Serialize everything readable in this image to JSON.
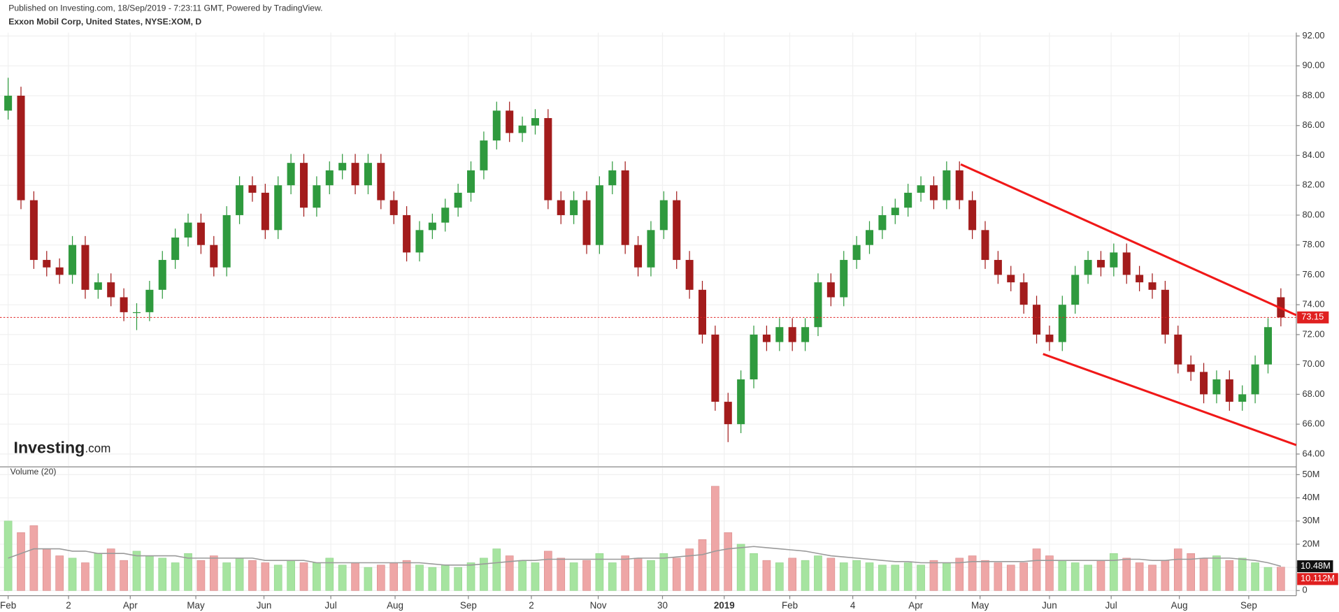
{
  "chart_data": {
    "type": "candlestick",
    "published": "Published on Investing.com, 18/Sep/2019 - 7:23:11 GMT, Powered by TradingView.",
    "title": "Exxon Mobil Corp, United States, NYSE:XOM, D",
    "logo": [
      "Investing",
      ".com"
    ],
    "volume_title": "Volume (20)",
    "up_color": "#2f9a3e",
    "down_color": "#a31c1c",
    "volume_up_color": "#a6e4a0",
    "volume_down_color": "#eea6a6",
    "ma_color": "#9a9a9a",
    "trendline_color": "#f01818",
    "grid": true,
    "xlim": [
      -0.3,
      100.2
    ],
    "xticks": [
      {
        "value": 0,
        "label": "Feb"
      },
      {
        "value": 4.7,
        "label": "2"
      },
      {
        "value": 9.5,
        "label": "Apr"
      },
      {
        "value": 14.6,
        "label": "May"
      },
      {
        "value": 19.9,
        "label": "Jun"
      },
      {
        "value": 25.1,
        "label": "Jul"
      },
      {
        "value": 30.1,
        "label": "Aug"
      },
      {
        "value": 35.8,
        "label": "Sep"
      },
      {
        "value": 40.7,
        "label": "2"
      },
      {
        "value": 45.9,
        "label": "Nov"
      },
      {
        "value": 50.9,
        "label": "30"
      },
      {
        "value": 55.7,
        "label": "2019"
      },
      {
        "value": 60.8,
        "label": "Feb"
      },
      {
        "value": 65.7,
        "label": "4"
      },
      {
        "value": 70.6,
        "label": "Apr"
      },
      {
        "value": 75.6,
        "label": "May"
      },
      {
        "value": 81.0,
        "label": "Jun"
      },
      {
        "value": 85.8,
        "label": "Jul"
      },
      {
        "value": 91.1,
        "label": "Aug"
      },
      {
        "value": 96.5,
        "label": "Sep"
      }
    ],
    "ylim": [
      63.2,
      92.23
    ],
    "yticks": [
      {
        "value": 64,
        "label": "64.00"
      },
      {
        "value": 66,
        "label": "66.00"
      },
      {
        "value": 68,
        "label": "68.00"
      },
      {
        "value": 70,
        "label": "70.00"
      },
      {
        "value": 72,
        "label": "72.00"
      },
      {
        "value": 74,
        "label": "74.00"
      },
      {
        "value": 76,
        "label": "76.00"
      },
      {
        "value": 78,
        "label": "78.00"
      },
      {
        "value": 80,
        "label": "80.00"
      },
      {
        "value": 82,
        "label": "82.00"
      },
      {
        "value": 84,
        "label": "84.00"
      },
      {
        "value": 86,
        "label": "86.00"
      },
      {
        "value": 88,
        "label": "88.00"
      },
      {
        "value": 90,
        "label": "90.00"
      },
      {
        "value": 92,
        "label": "92.00"
      }
    ],
    "y2lim": [
      -1.1,
      53
    ],
    "y2ticks": [
      0,
      {
        "value": 10,
        "label": "10M"
      },
      {
        "value": 20,
        "label": "20M"
      },
      {
        "value": 30,
        "label": "30M"
      },
      {
        "value": 40,
        "label": "40M"
      },
      {
        "value": 50,
        "label": "50M"
      }
    ],
    "open": [
      87,
      88,
      81,
      77,
      76.5,
      76,
      78,
      75,
      75.5,
      74.5,
      73.5,
      73.5,
      75,
      77,
      78.5,
      79.5,
      78,
      76.5,
      80,
      82,
      81.5,
      79,
      82,
      83.5,
      80.5,
      82,
      83,
      83.5,
      82,
      83.5,
      81,
      80,
      77.5,
      79,
      79.5,
      80.5,
      81.5,
      83,
      85,
      87,
      85.5,
      86,
      86.5,
      81,
      80,
      81,
      78,
      82,
      83,
      78,
      76.5,
      79,
      81,
      77,
      75,
      72,
      67.5,
      66,
      69,
      72,
      71.5,
      72.5,
      71.5,
      72.5,
      75.5,
      74.5,
      77,
      78,
      79,
      80,
      80.5,
      81.5,
      82,
      81,
      83,
      81,
      79,
      77,
      76,
      75.5,
      74,
      72,
      71.5,
      74,
      76,
      77,
      76.5,
      77.5,
      76,
      75.5,
      75,
      72,
      70,
      69.5,
      68,
      69,
      67.5,
      68,
      70,
      74.5
    ],
    "high": [
      89.2,
      88.6,
      81.6,
      77.6,
      77.1,
      78.6,
      78.6,
      76.1,
      76.1,
      75.1,
      74.1,
      75.6,
      77.6,
      79.1,
      80.1,
      80.1,
      78.6,
      80.6,
      82.6,
      82.6,
      82.1,
      82.6,
      84.1,
      84.1,
      82.6,
      83.6,
      84.1,
      84.1,
      84.1,
      84.1,
      81.6,
      80.6,
      79.6,
      80.1,
      81.1,
      82.1,
      83.6,
      85.6,
      87.6,
      87.6,
      86.6,
      87.1,
      87.1,
      81.6,
      81.6,
      81.6,
      82.6,
      83.6,
      83.6,
      78.6,
      79.6,
      81.6,
      81.6,
      77.6,
      75.6,
      72.6,
      68.1,
      69.6,
      72.6,
      72.6,
      73.1,
      73.1,
      73.1,
      76.1,
      76.1,
      77.6,
      78.6,
      79.6,
      80.6,
      81.1,
      82.1,
      82.6,
      82.6,
      83.6,
      83.6,
      81.6,
      79.6,
      77.6,
      76.6,
      76.1,
      74.6,
      72.6,
      74.6,
      76.6,
      77.6,
      77.6,
      78.1,
      78.1,
      76.6,
      76.1,
      75.6,
      72.6,
      70.6,
      70.1,
      69.6,
      69.6,
      68.6,
      70.6,
      73.1,
      75.1
    ],
    "low": [
      86.4,
      80.4,
      76.4,
      75.9,
      75.4,
      75.4,
      74.4,
      74.4,
      73.9,
      72.9,
      72.3,
      72.9,
      74.4,
      76.4,
      77.9,
      77.4,
      75.9,
      75.9,
      79.4,
      80.9,
      78.4,
      78.4,
      81.4,
      79.9,
      79.9,
      81.4,
      82.4,
      81.4,
      81.4,
      80.4,
      79.4,
      76.9,
      76.9,
      78.4,
      78.9,
      79.9,
      80.9,
      82.4,
      84.4,
      84.9,
      84.9,
      85.4,
      80.4,
      79.4,
      79.4,
      77.4,
      77.4,
      81.4,
      77.4,
      75.9,
      75.9,
      78.4,
      76.4,
      74.4,
      71.4,
      66.9,
      64.8,
      65.4,
      68.4,
      70.9,
      70.9,
      70.9,
      70.9,
      71.9,
      73.9,
      73.9,
      76.4,
      77.4,
      78.4,
      79.4,
      79.9,
      80.9,
      80.4,
      80.4,
      80.4,
      78.4,
      76.4,
      75.4,
      74.9,
      73.4,
      71.4,
      70.9,
      70.9,
      73.4,
      75.4,
      75.9,
      75.9,
      75.4,
      74.9,
      74.4,
      71.4,
      69.4,
      68.9,
      67.4,
      67.4,
      66.9,
      66.9,
      67.4,
      69.4,
      72.55
    ],
    "close": [
      88,
      81,
      77,
      76.5,
      76,
      78,
      75,
      75.5,
      74.5,
      73.5,
      73.5,
      75,
      77,
      78.5,
      79.5,
      78,
      76.5,
      80,
      82,
      81.5,
      79,
      82,
      83.5,
      80.5,
      82,
      83,
      83.5,
      82,
      83.5,
      81,
      80,
      77.5,
      79,
      79.5,
      80.5,
      81.5,
      83,
      85,
      87,
      85.5,
      86,
      86.5,
      81,
      80,
      81,
      78,
      82,
      83,
      78,
      76.5,
      79,
      81,
      77,
      75,
      72,
      67.5,
      66,
      69,
      72,
      71.5,
      72.5,
      71.5,
      72.5,
      75.5,
      74.5,
      77,
      78,
      79,
      80,
      80.5,
      81.5,
      82,
      81,
      83,
      81,
      79,
      77,
      76,
      75.5,
      74,
      72,
      71.5,
      74,
      76,
      77,
      76.5,
      77.5,
      76,
      75.5,
      75,
      72,
      70,
      69.5,
      68,
      69,
      67.5,
      68,
      70,
      72.5,
      73.15
    ],
    "volume": [
      30,
      25,
      28,
      18,
      15,
      14,
      12,
      16,
      18,
      13,
      17,
      15,
      14,
      12,
      16,
      13,
      15,
      12,
      14,
      13,
      12,
      11,
      13,
      12,
      12,
      14,
      11,
      12,
      10,
      11,
      12,
      13,
      11,
      10,
      11,
      10,
      12,
      14,
      18,
      15,
      13,
      12,
      17,
      14,
      12,
      13,
      16,
      12,
      15,
      14,
      13,
      16,
      14,
      18,
      22,
      45,
      25,
      20,
      16,
      13,
      12,
      14,
      13,
      15,
      14,
      12,
      13,
      12,
      11,
      11,
      12,
      11,
      13,
      12,
      14,
      15,
      13,
      12,
      11,
      12,
      18,
      15,
      13,
      12,
      11,
      13,
      16,
      14,
      12,
      11,
      13,
      18,
      16,
      14,
      15,
      13,
      14,
      12,
      10,
      10.112
    ],
    "volume_label": "10.112M",
    "volume_ma": [
      14,
      16,
      18,
      18,
      18,
      17,
      17,
      16,
      16,
      16,
      15,
      15,
      15,
      15,
      14,
      14,
      14,
      14,
      14,
      14,
      13,
      13,
      13,
      13,
      12,
      12,
      12,
      12,
      12,
      12,
      12,
      12,
      12,
      11.5,
      11,
      11,
      11,
      11.5,
      12,
      12.5,
      13,
      13,
      13.5,
      13.5,
      13.5,
      13.5,
      13.5,
      13.5,
      13.5,
      14,
      14,
      14,
      14.5,
      15,
      15.5,
      17,
      18,
      18.5,
      19,
      18.5,
      18,
      17.5,
      17,
      16,
      15,
      14.5,
      14,
      13.5,
      13,
      12.5,
      12.5,
      12,
      12,
      12,
      12,
      12.5,
      12.5,
      12.5,
      12.5,
      12.5,
      13,
      13,
      13,
      13,
      13,
      13,
      13,
      13.5,
      13.5,
      13,
      13,
      13.5,
      13.5,
      14,
      14,
      14,
      13.5,
      13,
      12,
      10.48
    ],
    "volume_ma_label": "10.48M",
    "trendlines": [
      {
        "x": [
          74.1,
          100.2
        ],
        "y": [
          83.4,
          73.3
        ]
      },
      {
        "x": [
          80.5,
          100.2
        ],
        "y": [
          70.7,
          64.6
        ]
      }
    ]
  }
}
